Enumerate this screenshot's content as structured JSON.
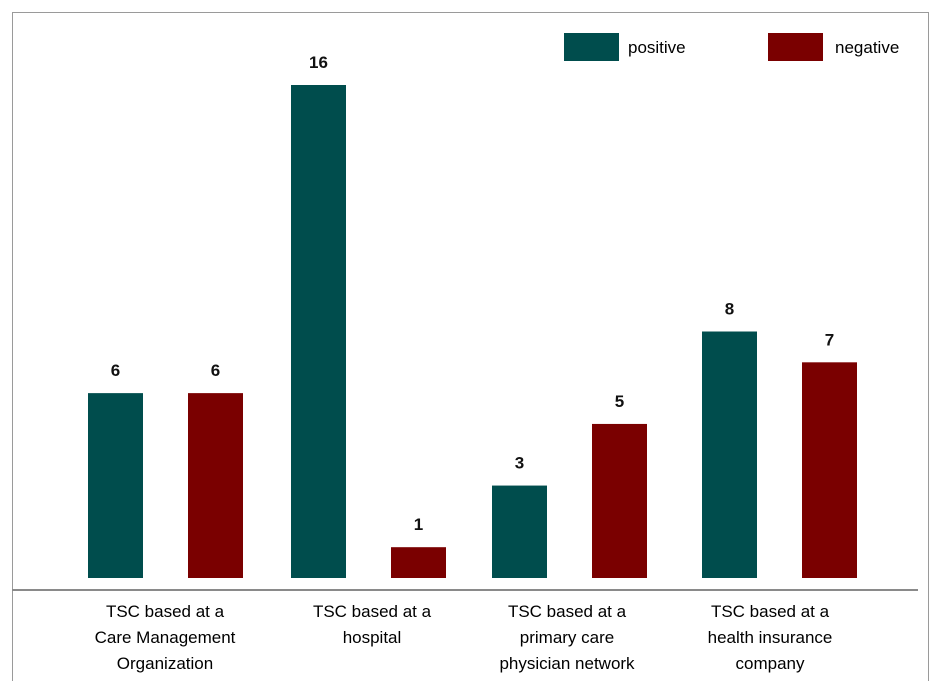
{
  "chart_data": {
    "type": "bar",
    "categories": [
      [
        "TSC based at a",
        "Care Management",
        "Organization"
      ],
      [
        "TSC based at a",
        "hospital"
      ],
      [
        "TSC based at a",
        "primary care",
        "physician network"
      ],
      [
        "TSC based at a",
        "health insurance",
        "company"
      ]
    ],
    "series": [
      {
        "name": "positive",
        "color": "#004d4d",
        "values": [
          6,
          16,
          3,
          8
        ]
      },
      {
        "name": "negative",
        "color": "#7a0000",
        "values": [
          6,
          1,
          5,
          7
        ]
      }
    ],
    "ylim": [
      0,
      16
    ],
    "grid": false,
    "legend_position": "top-right",
    "data_labels": true
  }
}
